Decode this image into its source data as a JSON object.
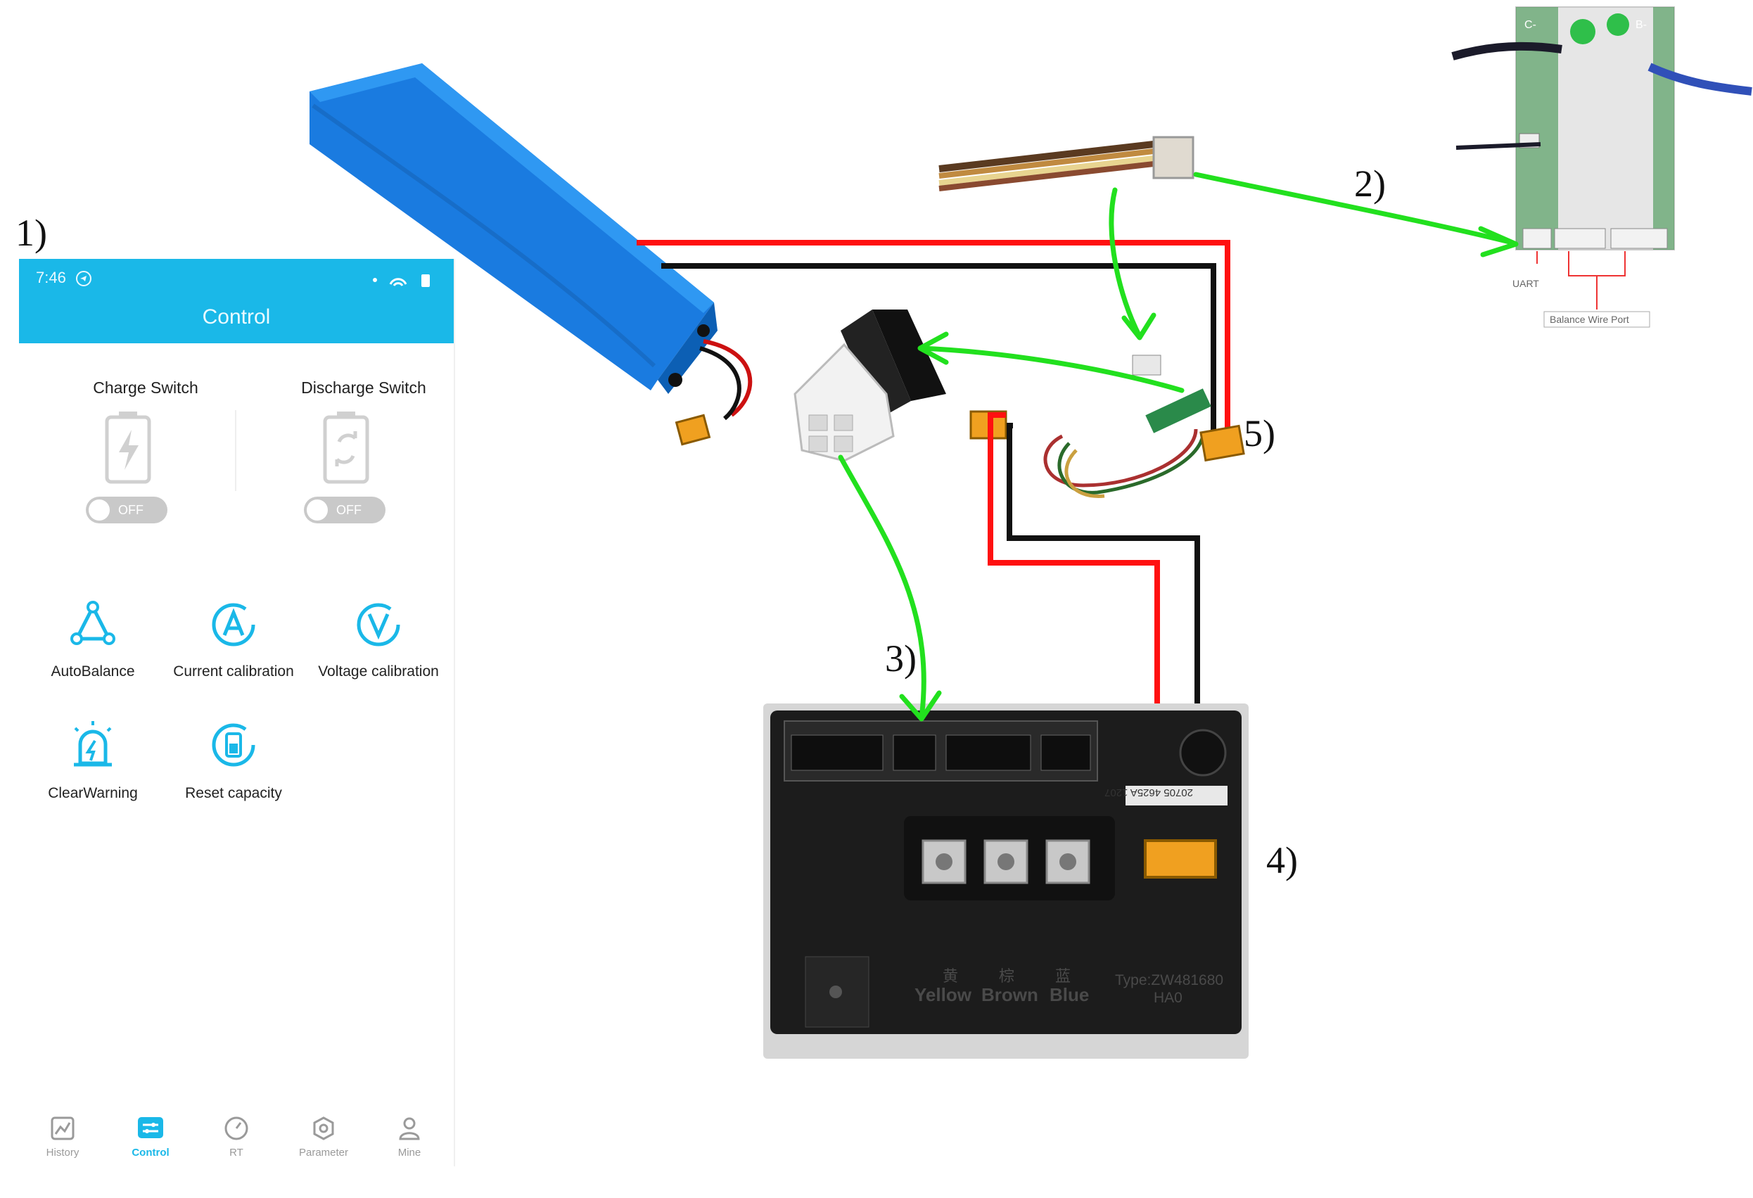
{
  "labels": {
    "n1": "1)",
    "n2": "2)",
    "n3": "3)",
    "n4": "4)",
    "n5": "5)"
  },
  "bms": {
    "uart": "UART",
    "balance_port": "Balance Wire Port",
    "pad_c": "C-",
    "pad_b": "B-"
  },
  "controller": {
    "serial": "20705 4625A 1207",
    "phase_cn": [
      "黄",
      "棕",
      "蓝"
    ],
    "phase_en": [
      "Yellow",
      "Brown",
      "Blue"
    ],
    "type_line1": "Type:ZW481680",
    "type_line2": "HA0"
  },
  "phone": {
    "time": "7:46",
    "title": "Control",
    "charge_switch": "Charge Switch",
    "discharge_switch": "Discharge Switch",
    "charge_state": "OFF",
    "discharge_state": "OFF",
    "functions": [
      "AutoBalance",
      "Current calibration",
      "Voltage calibration",
      "ClearWarning",
      "Reset capacity"
    ],
    "nav": [
      "History",
      "Control",
      "RT",
      "Parameter",
      "Mine"
    ],
    "accent": "#1ab8e8"
  },
  "colors": {
    "arrow": "#22e01e",
    "positive_wire": "#ff1010",
    "negative_wire": "#111111",
    "battery": "#1e7fe0",
    "highlight": "#1428d8"
  }
}
